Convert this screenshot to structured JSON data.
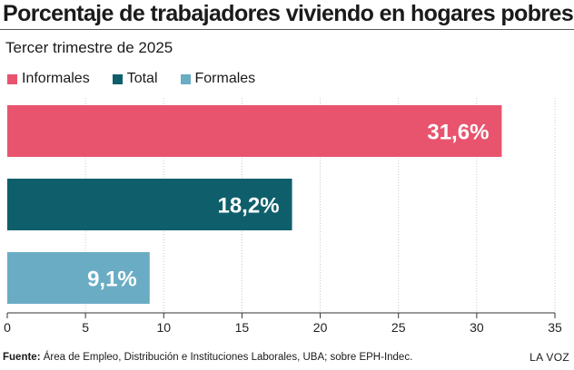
{
  "chart_data": {
    "type": "bar",
    "orientation": "horizontal",
    "title": "Porcentaje de trabajadores viviendo en hogares pobres",
    "subtitle": "Tercer trimestre de 2025",
    "xlabel": "",
    "ylabel": "",
    "xlim": [
      0,
      35
    ],
    "ticks": [
      "0",
      "5",
      "10",
      "15",
      "20",
      "25",
      "30",
      "35"
    ],
    "tick_values": [
      0,
      5,
      10,
      15,
      20,
      25,
      30,
      35
    ],
    "grid": true,
    "legend_position": "top-left",
    "series": [
      {
        "name": "Informales",
        "value": 31.6,
        "label": "31,6%",
        "color": "#e8546e"
      },
      {
        "name": "Total",
        "value": 18.2,
        "label": "18,2%",
        "color": "#0e5f6b"
      },
      {
        "name": "Formales",
        "value": 9.1,
        "label": "9,1%",
        "color": "#6aacc4"
      }
    ]
  },
  "footer": {
    "source_label": "Fuente:",
    "source_text": "Área de Empleo, Distribución e Instituciones Laborales, UBA; sobre EPH-Indec."
  },
  "brand": "LA VOZ"
}
